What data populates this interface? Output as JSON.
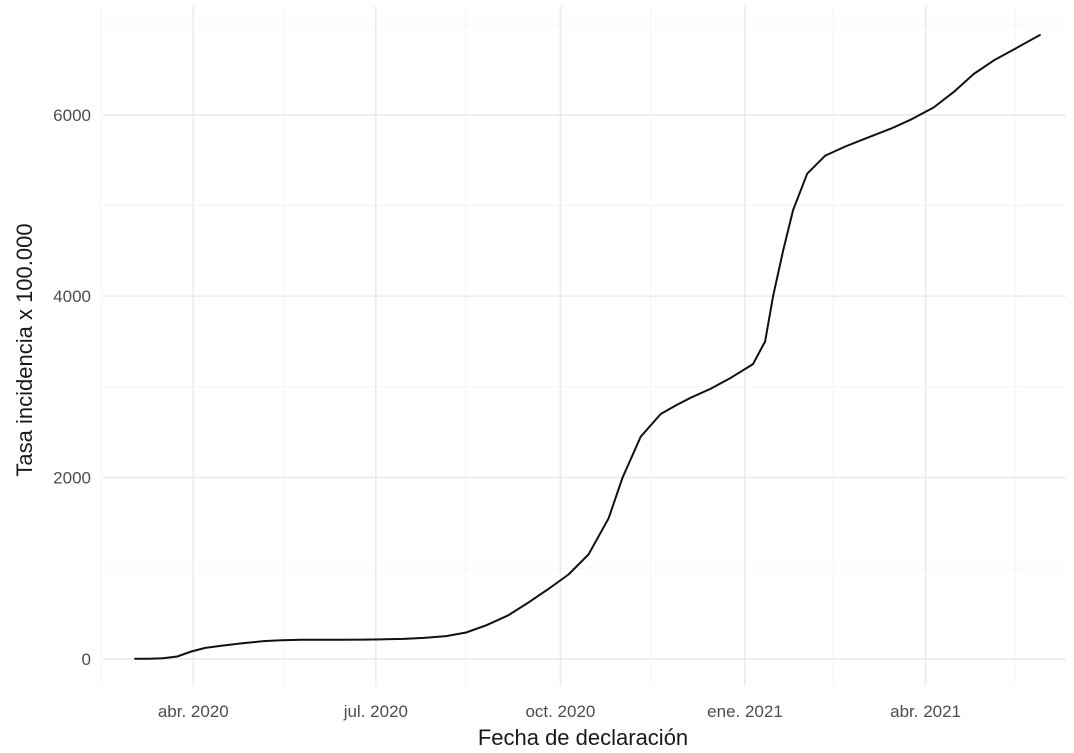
{
  "chart_data": {
    "type": "line",
    "title": "",
    "xlabel": "Fecha de declaración",
    "ylabel": "Tasa incidencia x 100.000",
    "xlim": [
      "2020-02-16",
      "2021-06-10"
    ],
    "ylim": [
      -300,
      7200
    ],
    "grid": true,
    "legend": "none",
    "x_ticks": [
      {
        "date": "2020-04-01",
        "label": "abr. 2020"
      },
      {
        "date": "2020-07-01",
        "label": "jul. 2020"
      },
      {
        "date": "2020-10-01",
        "label": "oct. 2020"
      },
      {
        "date": "2021-01-01",
        "label": "ene. 2021"
      },
      {
        "date": "2021-04-01",
        "label": "abr. 2021"
      }
    ],
    "x_minor_ticks": [
      "2020-02-15",
      "2020-05-16",
      "2020-08-15",
      "2020-11-15",
      "2021-02-14",
      "2021-05-16"
    ],
    "y_ticks": [
      {
        "value": 0,
        "label": "0"
      },
      {
        "value": 2000,
        "label": "2000"
      },
      {
        "value": 4000,
        "label": "4000"
      },
      {
        "value": 6000,
        "label": "6000"
      }
    ],
    "y_minor_ticks": [
      1000,
      3000,
      5000,
      7000
    ],
    "series": [
      {
        "color": "#111111",
        "x": [
          "2020-03-03",
          "2020-03-10",
          "2020-03-17",
          "2020-03-24",
          "2020-03-31",
          "2020-04-07",
          "2020-04-15",
          "2020-04-25",
          "2020-05-06",
          "2020-05-15",
          "2020-05-25",
          "2020-06-05",
          "2020-06-15",
          "2020-06-25",
          "2020-07-05",
          "2020-07-15",
          "2020-07-25",
          "2020-08-05",
          "2020-08-15",
          "2020-08-25",
          "2020-09-05",
          "2020-09-15",
          "2020-09-25",
          "2020-10-05",
          "2020-10-15",
          "2020-10-25",
          "2020-11-01",
          "2020-11-10",
          "2020-11-20",
          "2020-11-28",
          "2020-12-05",
          "2020-12-15",
          "2020-12-25",
          "2021-01-05",
          "2021-01-11",
          "2021-01-15",
          "2021-01-20",
          "2021-01-25",
          "2021-02-01",
          "2021-02-10",
          "2021-02-20",
          "2021-03-01",
          "2021-03-15",
          "2021-03-25",
          "2021-04-05",
          "2021-04-15",
          "2021-04-25",
          "2021-05-05",
          "2021-05-15",
          "2021-05-28"
        ],
        "y": [
          0,
          0,
          5,
          25,
          80,
          120,
          145,
          170,
          195,
          205,
          210,
          210,
          210,
          212,
          215,
          220,
          230,
          250,
          290,
          370,
          480,
          620,
          770,
          930,
          1150,
          1550,
          2000,
          2450,
          2700,
          2800,
          2880,
          2980,
          3100,
          3250,
          3500,
          4000,
          4500,
          4950,
          5350,
          5550,
          5650,
          5730,
          5850,
          5950,
          6080,
          6250,
          6450,
          6600,
          6720,
          6880
        ]
      }
    ]
  }
}
